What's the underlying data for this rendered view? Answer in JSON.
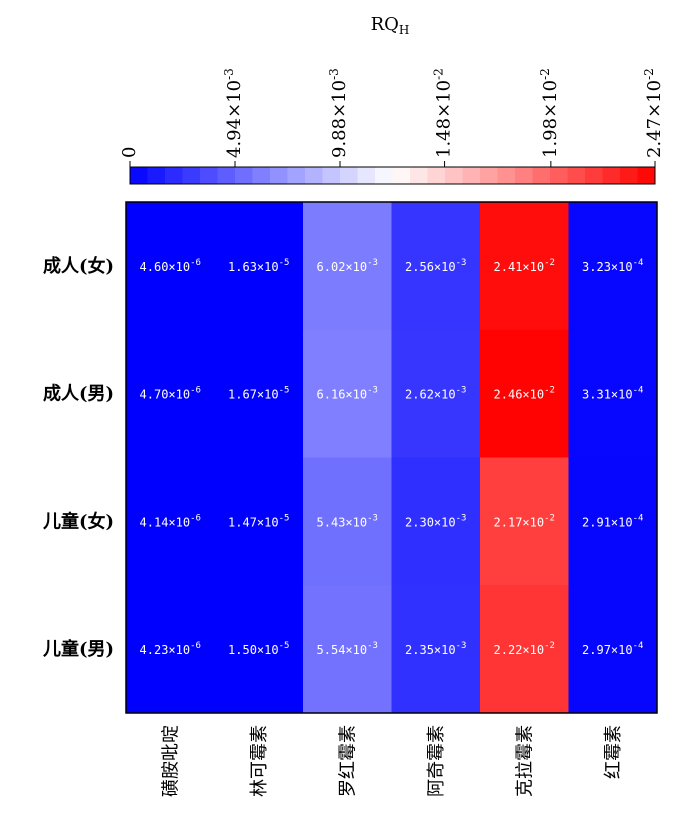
{
  "chart_data": {
    "type": "heatmap",
    "rows": [
      "成人(女)",
      "成人(男)",
      "儿童(女)",
      "儿童(男)"
    ],
    "columns": [
      "磺胺吡啶",
      "林可霉素",
      "罗红霉素",
      "阿奇霉素",
      "克拉霉素",
      "红霉素"
    ],
    "values": [
      [
        4.6e-06,
        1.63e-05,
        0.00602,
        0.00256,
        0.0241,
        0.000323
      ],
      [
        4.7e-06,
        1.67e-05,
        0.00616,
        0.00262,
        0.0246,
        0.000331
      ],
      [
        4.14e-06,
        1.47e-05,
        0.00543,
        0.0023,
        0.0217,
        0.000291
      ],
      [
        4.23e-06,
        1.5e-05,
        0.00554,
        0.00235,
        0.0222,
        0.000297
      ]
    ],
    "cell_labels": [
      [
        {
          "m": "4.60",
          "e": "-6"
        },
        {
          "m": "1.63",
          "e": "-5"
        },
        {
          "m": "6.02",
          "e": "-3"
        },
        {
          "m": "2.56",
          "e": "-3"
        },
        {
          "m": "2.41",
          "e": "-2"
        },
        {
          "m": "3.23",
          "e": "-4"
        }
      ],
      [
        {
          "m": "4.70",
          "e": "-6"
        },
        {
          "m": "1.67",
          "e": "-5"
        },
        {
          "m": "6.16",
          "e": "-3"
        },
        {
          "m": "2.62",
          "e": "-3"
        },
        {
          "m": "2.46",
          "e": "-2"
        },
        {
          "m": "3.31",
          "e": "-4"
        }
      ],
      [
        {
          "m": "4.14",
          "e": "-6"
        },
        {
          "m": "1.47",
          "e": "-5"
        },
        {
          "m": "5.43",
          "e": "-3"
        },
        {
          "m": "2.30",
          "e": "-3"
        },
        {
          "m": "2.17",
          "e": "-2"
        },
        {
          "m": "2.91",
          "e": "-4"
        }
      ],
      [
        {
          "m": "4.23",
          "e": "-6"
        },
        {
          "m": "1.50",
          "e": "-5"
        },
        {
          "m": "5.54",
          "e": "-3"
        },
        {
          "m": "2.35",
          "e": "-3"
        },
        {
          "m": "2.22",
          "e": "-2"
        },
        {
          "m": "2.97",
          "e": "-4"
        }
      ]
    ],
    "colorbar": {
      "title": "RQ",
      "title_subscript": "H",
      "min": 0,
      "max": 0.0247,
      "ticks": [
        {
          "value": 0,
          "label": "0",
          "exp": ""
        },
        {
          "value": 0.00494,
          "label": "4.94×10",
          "exp": "-3"
        },
        {
          "value": 0.00988,
          "label": "9.88×10",
          "exp": "-3"
        },
        {
          "value": 0.0148,
          "label": "1.48×10",
          "exp": "-2"
        },
        {
          "value": 0.0198,
          "label": "1.98×10",
          "exp": "-2"
        },
        {
          "value": 0.0247,
          "label": "2.47×10",
          "exp": "-2"
        }
      ],
      "colors": [
        "#0000ff",
        "#ffffff",
        "#ff0000"
      ]
    }
  }
}
